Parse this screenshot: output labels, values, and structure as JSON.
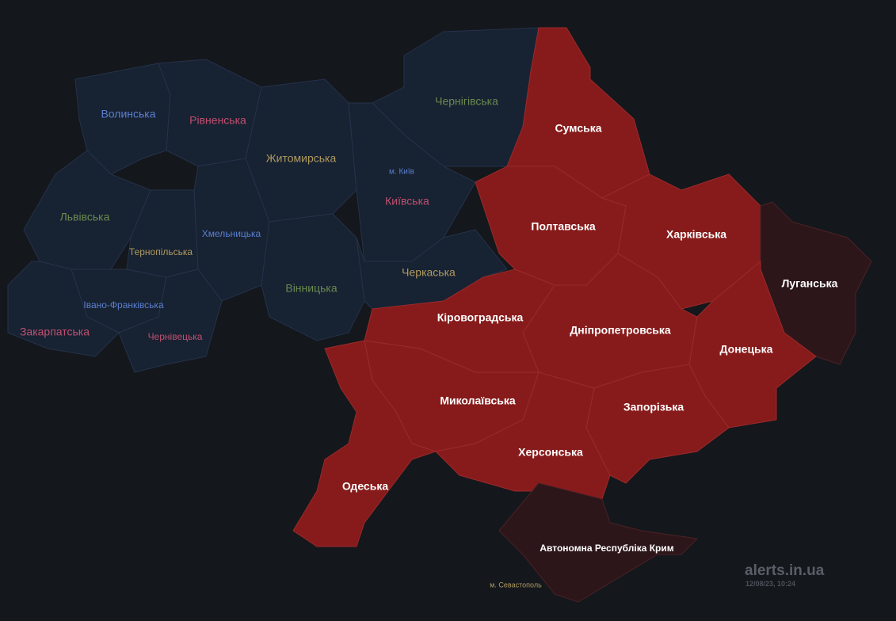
{
  "colors": {
    "background": "#14171c",
    "calm": "#172232",
    "alert": "#871b1b",
    "partial": "#2d161a"
  },
  "regions": {
    "volyn": {
      "label": "Волинська",
      "status": "calm",
      "label_color": "#5b7fd0"
    },
    "rivne": {
      "label": "Рівненська",
      "status": "calm",
      "label_color": "#c05070"
    },
    "zhytomyr": {
      "label": "Житомирська",
      "status": "calm",
      "label_color": "#b09a60"
    },
    "chernihiv": {
      "label": "Чернігівська",
      "status": "calm",
      "label_color": "#6a8a50"
    },
    "kyiv_city": {
      "label": "м. Київ",
      "status": "calm",
      "label_color": "#5b7fd0"
    },
    "kyiv": {
      "label": "Київська",
      "status": "calm",
      "label_color": "#c05070"
    },
    "lviv": {
      "label": "Львівська",
      "status": "calm",
      "label_color": "#6a8a50"
    },
    "ternopil": {
      "label": "Тернопільська",
      "status": "calm",
      "label_color": "#b09a60"
    },
    "khmelnytskyi": {
      "label": "Хмельницька",
      "status": "calm",
      "label_color": "#5b7fd0"
    },
    "vinnytsia": {
      "label": "Вінницька",
      "status": "calm",
      "label_color": "#6a8a50"
    },
    "cherkasy": {
      "label": "Черкаська",
      "status": "calm",
      "label_color": "#b09a60"
    },
    "ivano_frankivsk": {
      "label": "Івано-Франківська",
      "status": "calm",
      "label_color": "#5b7fd0"
    },
    "zakarpattia": {
      "label": "Закарпатська",
      "status": "calm",
      "label_color": "#c05070"
    },
    "chernivtsi": {
      "label": "Чернівецька",
      "status": "calm",
      "label_color": "#c05070"
    },
    "sumy": {
      "label": "Сумська",
      "status": "alert"
    },
    "poltava": {
      "label": "Полтавська",
      "status": "alert"
    },
    "kharkiv": {
      "label": "Харківська",
      "status": "alert"
    },
    "luhansk": {
      "label": "Луганська",
      "status": "partial"
    },
    "kirovohrad": {
      "label": "Кіровоградська",
      "status": "alert"
    },
    "dnipro": {
      "label": "Дніпропетровська",
      "status": "alert"
    },
    "donetsk": {
      "label": "Донецька",
      "status": "alert"
    },
    "mykolaiv": {
      "label": "Миколаївська",
      "status": "alert"
    },
    "zaporizhzhia": {
      "label": "Запорізька",
      "status": "alert"
    },
    "kherson": {
      "label": "Херсонська",
      "status": "alert"
    },
    "odesa": {
      "label": "Одеська",
      "status": "alert"
    },
    "crimea": {
      "label": "Автономна Республіка Крим",
      "status": "partial"
    },
    "sevastopol": {
      "label": "м. Севастополь",
      "status": "calm",
      "label_color": "#b09a60"
    }
  },
  "watermark": {
    "site": "alerts.in.ua",
    "timestamp": "12/08/23, 10:24"
  }
}
